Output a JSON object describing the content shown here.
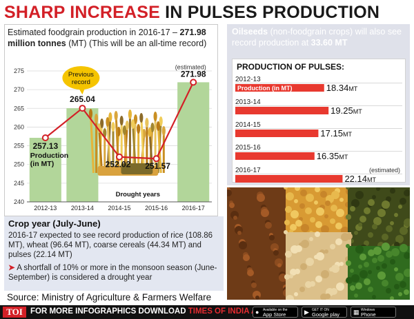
{
  "headline": {
    "part1": "SHARP INCREASE",
    "part2": "IN PULSES PRODUCTION"
  },
  "intro": {
    "line1_pre": "Estimated foodgrain production in 2016-17 – ",
    "line1_bold": "271.98",
    "line2_bold": "million tonnes",
    "line2_rest": " (MT) (This will be an all-time record)"
  },
  "chart_data": [
    {
      "type": "line",
      "x": [
        "2012-13",
        "2013-14",
        "2014-15",
        "2015-16",
        "2016-17"
      ],
      "values": [
        257.13,
        265.04,
        252.02,
        251.57,
        271.98
      ],
      "value_labels": [
        "257.13",
        "265.04",
        "252.02",
        "251.57",
        "271.98"
      ],
      "ylim": [
        240,
        275
      ],
      "yticks": [
        "240",
        "245",
        "250",
        "255",
        "260",
        "265",
        "270",
        "275"
      ],
      "annotations": {
        "previous_record_line1": "Previous",
        "previous_record_line2": "record",
        "estimated": "(estimated)",
        "production_line1": "Production",
        "production_line2": "(in MT)",
        "drought_years": "Drought years"
      },
      "colors": {
        "line": "#d32027",
        "area": "#b2d69a",
        "record_bubble": "#f5c400"
      }
    },
    {
      "type": "bar",
      "title": "PRODUCTION OF PULSES:",
      "categories": [
        "2012-13",
        "2013-14",
        "2014-15",
        "2015-16",
        "2016-17"
      ],
      "values": [
        18.34,
        19.25,
        17.15,
        16.35,
        22.14
      ],
      "value_labels": [
        "18.34",
        "19.25",
        "17.15",
        "16.35",
        "22.14"
      ],
      "unit": "MT",
      "series_label": "Production (in MT)",
      "estimated_label": "(estimated)",
      "colors": {
        "bar": "#e8392f"
      }
    }
  ],
  "oilseeds": {
    "bold": "Oilseeds",
    "rest": " (non-foodgrain crops) will also see record production at ",
    "value": "33.60 MT"
  },
  "crop_year": {
    "title": "Crop year (July-June)",
    "body": "2016-17 expected to see record production of rice (108.86 MT), wheat (96.64 MT), coarse cereals (44.34 MT) and pulses (22.14 MT)",
    "note": "A shortfall of 10% or more in the monsoon season (June-September) is considered a drought year"
  },
  "source": "Source: Ministry of Agriculture & Farmers Welfare",
  "footer": {
    "logo": "TOI",
    "text_pre": "FOR MORE INFOGRAPHICS DOWNLOAD ",
    "text_red": "TIMES OF INDIA APP",
    "app_store_small": "Available on the",
    "app_store": "App Store",
    "google_small": "GET IT ON",
    "google": "Google play",
    "windows_small": "Windows",
    "windows": "Phone"
  },
  "colors": {
    "accent": "#d32027",
    "panel": "#dfe1ea",
    "oil_text": "#ffffff"
  }
}
